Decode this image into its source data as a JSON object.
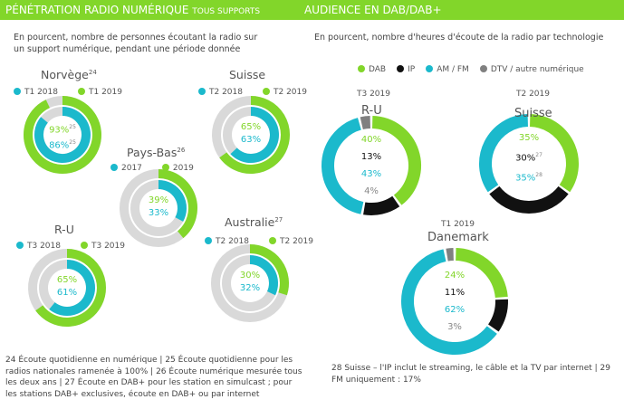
{
  "header": {
    "left_title": "PÉNÉTRATION RADIO NUMÉRIQUE",
    "left_suffix": "TOUS SUPPORTS",
    "right_title": "AUDIENCE EN DAB/DAB+"
  },
  "left_subtitle_1": "En pourcent, nombre de personnes écoutant la radio sur",
  "left_subtitle_2": "un support numérique, pendant une période donnée",
  "right_subtitle": "En pourcent, nombre d'heures d'écoute de la radio par technologie",
  "colors": {
    "green": "#82d62a",
    "cyan": "#1bb9cc",
    "gray": "#d9d9d9",
    "black": "#111111",
    "dtv": "#808080"
  },
  "right_legend": [
    {
      "label": "DAB",
      "color": "#82d62a"
    },
    {
      "label": "IP",
      "color": "#111111"
    },
    {
      "label": "AM / FM",
      "color": "#1bb9cc"
    },
    {
      "label": "DTV / autre numérique",
      "color": "#808080"
    }
  ],
  "chart_data": [
    {
      "type": "pie",
      "variant": "nested-donut",
      "title": "Norvège",
      "title_note": "24",
      "series": [
        {
          "name": "T1 2018",
          "value": 86,
          "note": "25",
          "ring": "inner"
        },
        {
          "name": "T1 2019",
          "value": 93,
          "note": "25",
          "ring": "outer"
        }
      ]
    },
    {
      "type": "pie",
      "variant": "nested-donut",
      "title": "Suisse",
      "title_note": "",
      "series": [
        {
          "name": "T2 2018",
          "value": 63,
          "note": "",
          "ring": "inner"
        },
        {
          "name": "T2 2019",
          "value": 65,
          "note": "",
          "ring": "outer"
        }
      ]
    },
    {
      "type": "pie",
      "variant": "nested-donut",
      "title": "Pays-Bas",
      "title_note": "26",
      "series": [
        {
          "name": "2017",
          "value": 33,
          "note": "",
          "ring": "inner"
        },
        {
          "name": "2019",
          "value": 39,
          "note": "",
          "ring": "outer"
        }
      ]
    },
    {
      "type": "pie",
      "variant": "nested-donut",
      "title": "R-U",
      "title_note": "",
      "series": [
        {
          "name": "T3 2018",
          "value": 61,
          "note": "",
          "ring": "inner"
        },
        {
          "name": "T3 2019",
          "value": 65,
          "note": "",
          "ring": "outer"
        }
      ]
    },
    {
      "type": "pie",
      "variant": "nested-donut",
      "title": "Australie",
      "title_note": "27",
      "series": [
        {
          "name": "T2 2018",
          "value": 32,
          "note": "",
          "ring": "inner"
        },
        {
          "name": "T2 2019",
          "value": 30,
          "note": "",
          "ring": "outer"
        }
      ]
    },
    {
      "type": "pie",
      "variant": "donut",
      "period": "T3 2019",
      "title": "R-U",
      "categories": [
        "DAB",
        "IP",
        "AM / FM",
        "DTV / autre numérique"
      ],
      "values": [
        40,
        13,
        43,
        4
      ],
      "labels": [
        "40%",
        "13%",
        "43%",
        "4%"
      ],
      "notes": [
        "",
        "",
        "",
        ""
      ]
    },
    {
      "type": "pie",
      "variant": "donut",
      "period": "T2 2019",
      "title": "Suisse",
      "categories": [
        "DAB",
        "IP",
        "AM / FM"
      ],
      "values": [
        35,
        30,
        35
      ],
      "labels": [
        "35%",
        "30%",
        "35%"
      ],
      "notes": [
        "",
        "27",
        "28"
      ]
    },
    {
      "type": "pie",
      "variant": "donut",
      "period": "T1 2019",
      "title": "Danemark",
      "categories": [
        "DAB",
        "IP",
        "AM / FM",
        "DTV / autre numérique"
      ],
      "values": [
        24,
        11,
        62,
        3
      ],
      "labels": [
        "24%",
        "11%",
        "62%",
        "3%"
      ],
      "notes": [
        "",
        "",
        "",
        ""
      ]
    }
  ],
  "footnote_left": "24 Écoute quotidienne en numérique | 25 Écoute quotidienne pour les radios nationales ramenée à 100% | 26 Écoute numérique mesurée tous les deux ans | 27 Écoute en DAB+ pour les station en simulcast ; pour les stations DAB+ exclusives, écoute en DAB+ ou par internet",
  "footnote_right": "28 Suisse – l'IP inclut le streaming, le câble et la TV par internet | 29 FM uniquement : 17%"
}
